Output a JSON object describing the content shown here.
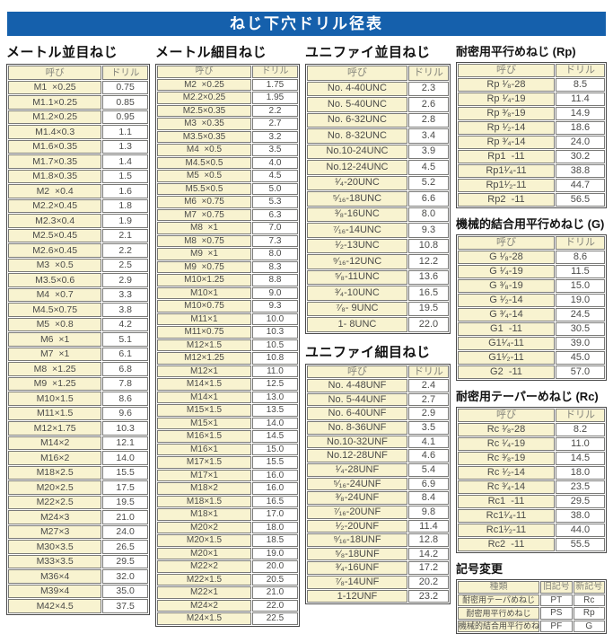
{
  "page": {
    "title": "ねじ下穴ドリル径表",
    "corner_mark": "--",
    "colors": {
      "header_blue": "#1560ac",
      "cell_yellow": "#f8f3d0",
      "border_gray": "#7a7a78",
      "header_text": "#85857c",
      "body_text": "#4b4b49"
    }
  },
  "layout": {
    "columns": [
      [
        0
      ],
      [
        1
      ],
      [
        2,
        3
      ],
      [
        4,
        5,
        6,
        7
      ]
    ]
  },
  "tables": [
    {
      "id": "metric-coarse",
      "title": "メートル並目ねじ",
      "css": "tbl-metric-coarse",
      "columns": [
        "呼び",
        "ドリル"
      ],
      "rows": [
        [
          "M1  ×0.25",
          "0.75"
        ],
        [
          "M1.1×0.25",
          "0.85"
        ],
        [
          "M1.2×0.25",
          "0.95"
        ],
        [
          "M1.4×0.3",
          "1.1"
        ],
        [
          "M1.6×0.35",
          "1.3"
        ],
        [
          "M1.7×0.35",
          "1.4"
        ],
        [
          "M1.8×0.35",
          "1.5"
        ],
        [
          "M2  ×0.4",
          "1.6"
        ],
        [
          "M2.2×0.45",
          "1.8"
        ],
        [
          "M2.3×0.4",
          "1.9"
        ],
        [
          "M2.5×0.45",
          "2.1"
        ],
        [
          "M2.6×0.45",
          "2.2"
        ],
        [
          "M3  ×0.5",
          "2.5"
        ],
        [
          "M3.5×0.6",
          "2.9"
        ],
        [
          "M4  ×0.7",
          "3.3"
        ],
        [
          "M4.5×0.75",
          "3.8"
        ],
        [
          "M5  ×0.8",
          "4.2"
        ],
        [
          "M6  ×1",
          "5.1"
        ],
        [
          "M7  ×1",
          "6.1"
        ],
        [
          "M8  ×1.25",
          "6.8"
        ],
        [
          "M9  ×1.25",
          "7.8"
        ],
        [
          "M10×1.5",
          "8.6"
        ],
        [
          "M11×1.5",
          "9.6"
        ],
        [
          "M12×1.75",
          "10.3"
        ],
        [
          "M14×2",
          "12.1"
        ],
        [
          "M16×2",
          "14.0"
        ],
        [
          "M18×2.5",
          "15.5"
        ],
        [
          "M20×2.5",
          "17.5"
        ],
        [
          "M22×2.5",
          "19.5"
        ],
        [
          "M24×3",
          "21.0"
        ],
        [
          "M27×3",
          "24.0"
        ],
        [
          "M30×3.5",
          "26.5"
        ],
        [
          "M33×3.5",
          "29.5"
        ],
        [
          "M36×4",
          "32.0"
        ],
        [
          "M39×4",
          "35.0"
        ],
        [
          "M42×4.5",
          "37.5"
        ]
      ]
    },
    {
      "id": "metric-fine",
      "title": "メートル細目ねじ",
      "css": "tbl-metric-fine",
      "columns": [
        "呼び",
        "ドリル"
      ],
      "rows": [
        [
          "M2  ×0.25",
          "1.75"
        ],
        [
          "M2.2×0.25",
          "1.95"
        ],
        [
          "M2.5×0.35",
          "2.2"
        ],
        [
          "M3  ×0.35",
          "2.7"
        ],
        [
          "M3.5×0.35",
          "3.2"
        ],
        [
          "M4  ×0.5",
          "3.5"
        ],
        [
          "M4.5×0.5",
          "4.0"
        ],
        [
          "M5  ×0.5",
          "4.5"
        ],
        [
          "M5.5×0.5",
          "5.0"
        ],
        [
          "M6  ×0.75",
          "5.3"
        ],
        [
          "M7  ×0.75",
          "6.3"
        ],
        [
          "M8  ×1",
          "7.0"
        ],
        [
          "M8  ×0.75",
          "7.3"
        ],
        [
          "M9  ×1",
          "8.0"
        ],
        [
          "M9  ×0.75",
          "8.3"
        ],
        [
          "M10×1.25",
          "8.8"
        ],
        [
          "M10×1",
          "9.0"
        ],
        [
          "M10×0.75",
          "9.3"
        ],
        [
          "M11×1",
          "10.0"
        ],
        [
          "M11×0.75",
          "10.3"
        ],
        [
          "M12×1.5",
          "10.5"
        ],
        [
          "M12×1.25",
          "10.8"
        ],
        [
          "M12×1",
          "11.0"
        ],
        [
          "M14×1.5",
          "12.5"
        ],
        [
          "M14×1",
          "13.0"
        ],
        [
          "M15×1.5",
          "13.5"
        ],
        [
          "M15×1",
          "14.0"
        ],
        [
          "M16×1.5",
          "14.5"
        ],
        [
          "M16×1",
          "15.0"
        ],
        [
          "M17×1.5",
          "15.5"
        ],
        [
          "M17×1",
          "16.0"
        ],
        [
          "M18×2",
          "16.0"
        ],
        [
          "M18×1.5",
          "16.5"
        ],
        [
          "M18×1",
          "17.0"
        ],
        [
          "M20×2",
          "18.0"
        ],
        [
          "M20×1.5",
          "18.5"
        ],
        [
          "M20×1",
          "19.0"
        ],
        [
          "M22×2",
          "20.0"
        ],
        [
          "M22×1.5",
          "20.5"
        ],
        [
          "M22×1",
          "21.0"
        ],
        [
          "M24×2",
          "22.0"
        ],
        [
          "M24×1.5",
          "22.5"
        ]
      ]
    },
    {
      "id": "unified-coarse",
      "title": "ユニファイ並目ねじ",
      "css": "tbl-unc",
      "columns": [
        "呼び",
        "ドリル"
      ],
      "rows": [
        [
          "No. 4-40UNC",
          "2.3"
        ],
        [
          "No. 5-40UNC",
          "2.6"
        ],
        [
          "No. 6-32UNC",
          "2.8"
        ],
        [
          "No. 8-32UNC",
          "3.4"
        ],
        [
          "No.10-24UNC",
          "3.9"
        ],
        [
          "No.12-24UNC",
          "4.5"
        ],
        [
          "¹⁄₄-20UNC",
          "5.2"
        ],
        [
          "⁵⁄₁₆-18UNC",
          "6.6"
        ],
        [
          "³⁄₈-16UNC",
          "8.0"
        ],
        [
          "⁷⁄₁₆-14UNC",
          "9.3"
        ],
        [
          "¹⁄₂-13UNC",
          "10.8"
        ],
        [
          "⁹⁄₁₆-12UNC",
          "12.2"
        ],
        [
          "⁵⁄₈-11UNC",
          "13.6"
        ],
        [
          "³⁄₄-10UNC",
          "16.5"
        ],
        [
          "⁷⁄₈- 9UNC",
          "19.5"
        ],
        [
          "1- 8UNC",
          "22.0"
        ]
      ]
    },
    {
      "id": "unified-fine",
      "title": "ユニファイ細目ねじ",
      "css": "tbl-unf",
      "columns": [
        "呼び",
        "ドリル"
      ],
      "rows": [
        [
          "No. 4-48UNF",
          "2.4"
        ],
        [
          "No. 5-44UNF",
          "2.7"
        ],
        [
          "No. 6-40UNF",
          "2.9"
        ],
        [
          "No. 8-36UNF",
          "3.5"
        ],
        [
          "No.10-32UNF",
          "4.1"
        ],
        [
          "No.12-28UNF",
          "4.6"
        ],
        [
          "¹⁄₄-28UNF",
          "5.4"
        ],
        [
          "⁵⁄₁₆-24UNF",
          "6.9"
        ],
        [
          "³⁄₈-24UNF",
          "8.4"
        ],
        [
          "⁷⁄₁₆-20UNF",
          "9.8"
        ],
        [
          "¹⁄₂-20UNF",
          "11.4"
        ],
        [
          "⁹⁄₁₆-18UNF",
          "12.8"
        ],
        [
          "⁵⁄₈-18UNF",
          "14.2"
        ],
        [
          "³⁄₄-16UNF",
          "17.2"
        ],
        [
          "⁷⁄₈-14UNF",
          "20.2"
        ],
        [
          "1-12UNF",
          "23.2"
        ]
      ]
    },
    {
      "id": "rp-parallel",
      "title": "耐密用平行めねじ (Rp)",
      "css": "tbl-rp",
      "columns": [
        "呼び",
        "ドリル"
      ],
      "rows": [
        [
          "Rp ¹⁄₈-28",
          "8.5"
        ],
        [
          "Rp ¹⁄₄-19",
          "11.4"
        ],
        [
          "Rp ³⁄₈-19",
          "14.9"
        ],
        [
          "Rp ¹⁄₂-14",
          "18.6"
        ],
        [
          "Rp ³⁄₄-14",
          "24.0"
        ],
        [
          "Rp1  -11",
          "30.2"
        ],
        [
          "Rp1¹⁄₄-11",
          "38.8"
        ],
        [
          "Rp1¹⁄₂-11",
          "44.7"
        ],
        [
          "Rp2  -11",
          "56.5"
        ]
      ]
    },
    {
      "id": "g-parallel",
      "title": "機械的結合用平行めねじ (G)",
      "css": "tbl-g",
      "columns": [
        "呼び",
        "ドリル"
      ],
      "rows": [
        [
          "G ¹⁄₈-28",
          "8.6"
        ],
        [
          "G ¹⁄₄-19",
          "11.5"
        ],
        [
          "G ³⁄₈-19",
          "15.0"
        ],
        [
          "G ¹⁄₂-14",
          "19.0"
        ],
        [
          "G ³⁄₄-14",
          "24.5"
        ],
        [
          "G1  -11",
          "30.5"
        ],
        [
          "G1¹⁄₄-11",
          "39.0"
        ],
        [
          "G1¹⁄₂-11",
          "45.0"
        ],
        [
          "G2  -11",
          "57.0"
        ]
      ]
    },
    {
      "id": "rc-taper",
      "title": "耐密用テーパーめねじ (Rc)",
      "css": "tbl-rc",
      "columns": [
        "呼び",
        "ドリル"
      ],
      "rows": [
        [
          "Rc ¹⁄₈-28",
          "8.2"
        ],
        [
          "Rc ¹⁄₄-19",
          "11.0"
        ],
        [
          "Rc ³⁄₈-19",
          "14.5"
        ],
        [
          "Rc ¹⁄₂-14",
          "18.0"
        ],
        [
          "Rc ³⁄₄-14",
          "23.5"
        ],
        [
          "Rc1  -11",
          "29.5"
        ],
        [
          "Rc1¹⁄₄-11",
          "38.0"
        ],
        [
          "Rc1¹⁄₂-11",
          "44.0"
        ],
        [
          "Rc2  -11",
          "55.5"
        ]
      ]
    },
    {
      "id": "symbol-change",
      "title": "記号変更",
      "css": "tbl-symbol",
      "columns": [
        "種類",
        "旧記号",
        "新記号"
      ],
      "rows": [
        [
          "耐密用テーパめねじ",
          "PT",
          "Rc"
        ],
        [
          "耐密用平行めねじ",
          "PS",
          "Rp"
        ],
        [
          "機械的結合用平行めねじ",
          "PF",
          "G"
        ]
      ]
    }
  ]
}
